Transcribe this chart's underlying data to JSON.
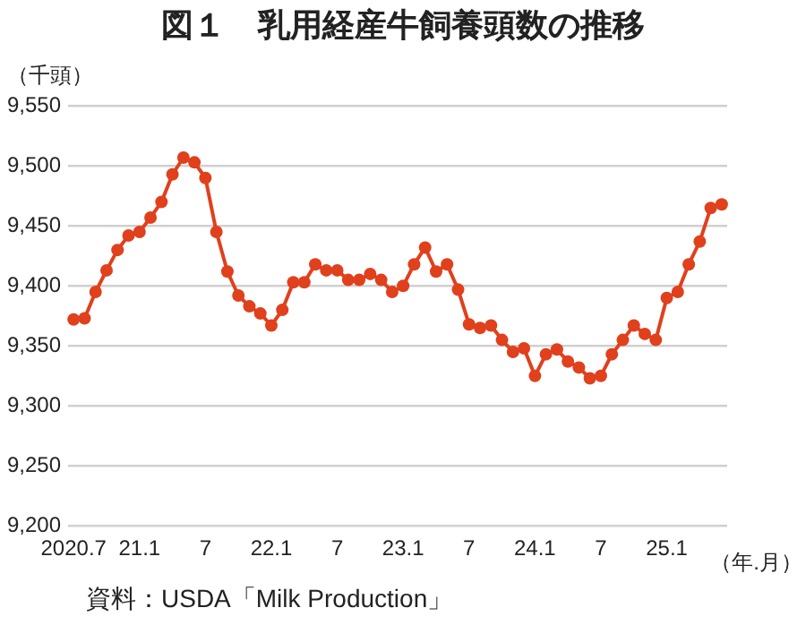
{
  "chart_data": {
    "type": "line",
    "title": "図１　乳用経産牛飼養頭数の推移",
    "ylabel": "（千頭）",
    "xlabel": "（年.月）",
    "annotations": [
      "資料：USDA「Milk Production」"
    ],
    "categories": [
      "2020.7",
      null,
      null,
      null,
      null,
      null,
      "21.1",
      null,
      null,
      null,
      null,
      null,
      "7",
      null,
      null,
      null,
      null,
      null,
      "22.1",
      null,
      null,
      null,
      null,
      null,
      "7",
      null,
      null,
      null,
      null,
      null,
      "23.1",
      null,
      null,
      null,
      null,
      null,
      "7",
      null,
      null,
      null,
      null,
      null,
      "24.1",
      null,
      null,
      null,
      null,
      null,
      "7",
      null,
      null,
      null,
      null,
      null,
      "25.1",
      null,
      null,
      null,
      null,
      null
    ],
    "series": [
      {
        "color": "#e0401c",
        "values": [
          9372,
          9373,
          9395,
          9413,
          9430,
          9442,
          9445,
          9457,
          9470,
          9493,
          9507,
          9503,
          9490,
          9445,
          9412,
          9392,
          9383,
          9377,
          9367,
          9380,
          9403,
          9403,
          9418,
          9413,
          9413,
          9405,
          9405,
          9410,
          9405,
          9395,
          9400,
          9418,
          9432,
          9412,
          9418,
          9397,
          9368,
          9365,
          9367,
          9355,
          9345,
          9348,
          9325,
          9343,
          9347,
          9337,
          9332,
          9323,
          9325,
          9343,
          9355,
          9367,
          9360,
          9355,
          9390,
          9395,
          9418,
          9437,
          9465,
          9468
        ]
      }
    ],
    "ylim": [
      9200,
      9550
    ],
    "yticks": [
      {
        "value": 9200,
        "label": "9,200"
      },
      {
        "value": 9250,
        "label": "9,250"
      },
      {
        "value": 9300,
        "label": "9,300"
      },
      {
        "value": 9350,
        "label": "9,350"
      },
      {
        "value": 9400,
        "label": "9,400"
      },
      {
        "value": 9450,
        "label": "9,450"
      },
      {
        "value": 9500,
        "label": "9,500"
      },
      {
        "value": 9550,
        "label": "9,550"
      }
    ],
    "grid": "y",
    "legend": false,
    "marker": "circle",
    "line_style": "solid"
  }
}
